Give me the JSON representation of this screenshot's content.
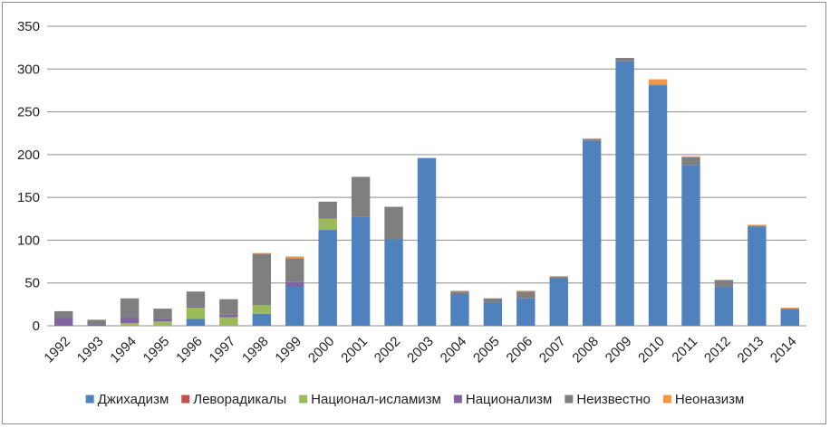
{
  "chart_data": {
    "type": "bar",
    "stacked": true,
    "categories": [
      "1992",
      "1993",
      "1994",
      "1995",
      "1996",
      "1997",
      "1998",
      "1999",
      "2000",
      "2001",
      "2002",
      "2003",
      "2004",
      "2005",
      "2006",
      "2007",
      "2008",
      "2009",
      "2010",
      "2011",
      "2012",
      "2013",
      "2014"
    ],
    "series": [
      {
        "name": "Джихадизм",
        "color": "#4f81bd",
        "values": [
          0,
          0,
          0,
          0,
          8,
          0,
          14,
          46,
          112,
          127,
          101,
          196,
          37,
          27,
          32,
          55,
          216,
          309,
          281,
          188,
          45,
          116,
          19
        ]
      },
      {
        "name": "Леворадикалы",
        "color": "#c0504d",
        "values": [
          0,
          0,
          0,
          0,
          0,
          0,
          0,
          0,
          0,
          0,
          0,
          0,
          0,
          0,
          0,
          0,
          0,
          0,
          0,
          0,
          0,
          0,
          0
        ]
      },
      {
        "name": "Национал-исламизм",
        "color": "#9bbb59",
        "values": [
          0,
          0,
          3,
          5,
          13,
          10,
          10,
          0,
          13,
          0,
          0,
          0,
          0,
          0,
          0,
          0,
          0,
          0,
          0,
          0,
          0,
          0,
          0
        ]
      },
      {
        "name": "Национализм",
        "color": "#8064a2",
        "values": [
          9,
          2,
          6,
          3,
          2,
          3,
          0,
          5,
          0,
          0,
          0,
          0,
          0,
          0,
          0,
          0,
          0,
          0,
          0,
          0,
          0,
          0,
          0
        ]
      },
      {
        "name": "Неизвестно",
        "color": "#7f7f7f",
        "values": [
          8,
          5,
          23,
          12,
          17,
          18,
          60,
          28,
          20,
          47,
          38,
          0,
          3,
          5,
          8,
          2,
          2,
          4,
          1,
          9,
          8,
          1,
          1
        ]
      },
      {
        "name": "Неоназизм",
        "color": "#f79646",
        "values": [
          0,
          0,
          0,
          0,
          0,
          0,
          1,
          2,
          0,
          0,
          0,
          0,
          1,
          0,
          1,
          1,
          1,
          0,
          6,
          1,
          1,
          1,
          1
        ]
      }
    ],
    "ylim": [
      0,
      350
    ],
    "yticks": [
      "0",
      "50",
      "100",
      "150",
      "200",
      "250",
      "300",
      "350"
    ],
    "grid": true,
    "legend_position": "bottom",
    "title": "",
    "xlabel": "",
    "ylabel": ""
  }
}
